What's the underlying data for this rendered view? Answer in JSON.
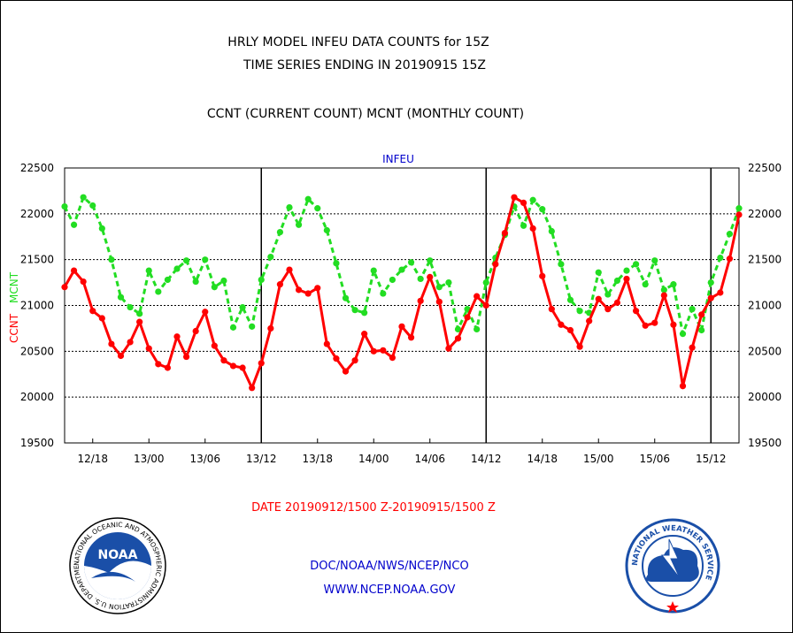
{
  "header": {
    "title_line1": "HRLY MODEL INFEU DATA COUNTS for 15Z",
    "title_line2": "TIME SERIES ENDING IN 20190915 15Z",
    "subtitle": "CCNT (CURRENT COUNT) MCNT (MONTHLY COUNT)"
  },
  "footer": {
    "date_range": "DATE 20190912/1500 Z-20190915/1500 Z",
    "org": "DOC/NOAA/NWS/NCEP/NCO",
    "url": "WWW.NCEP.NOAA.GOV"
  },
  "logos": {
    "noaa": {
      "center_text": "NOAA",
      "ring_text": "NATIONAL OCEANIC AND ATMOSPHERIC ADMINISTRATION  U.S. DEPARTMENT OF COMMERCE"
    },
    "nws": {
      "ring_text": "NATIONAL WEATHER SERVICE"
    }
  },
  "colors": {
    "ccnt": "#ff0000",
    "mcnt": "#22dd22",
    "panel_label": "#0000cc",
    "footer_link": "#0000cc",
    "date_text": "#ff0000"
  },
  "chart_data": {
    "type": "line",
    "title": "INFEU",
    "ylabel_left": "CCNT",
    "ylabel_right": "MCNT",
    "ylim": [
      19500,
      22500
    ],
    "yticks": [
      19500,
      20000,
      20500,
      21000,
      21500,
      22000,
      22500
    ],
    "ytick_labels": [
      "19500",
      "20000",
      "20500",
      "21000",
      "21500",
      "22000",
      "22500"
    ],
    "grid": true,
    "x_hours_start_offset": 0,
    "x_hours_end": 72,
    "x_tick_hours": [
      3,
      9,
      15,
      21,
      27,
      33,
      39,
      45,
      51,
      57,
      63,
      69
    ],
    "x_tick_labels": [
      "12/18",
      "13/00",
      "13/06",
      "13/12",
      "13/18",
      "14/00",
      "14/06",
      "14/12",
      "14/18",
      "15/00",
      "15/06",
      "15/12"
    ],
    "day_divider_hours": [
      21,
      45,
      69
    ],
    "series": [
      {
        "name": "CCNT",
        "values": [
          21200,
          21380,
          21260,
          20940,
          20860,
          20580,
          20450,
          20600,
          20820,
          20530,
          20360,
          20320,
          20660,
          20440,
          20720,
          20930,
          20560,
          20400,
          20340,
          20320,
          20100,
          20370,
          20750,
          21230,
          21390,
          21170,
          21130,
          21190,
          20580,
          20420,
          20280,
          20400,
          20690,
          20500,
          20510,
          20430,
          20770,
          20650,
          21050,
          21310,
          21040,
          20530,
          20640,
          20870,
          21100,
          21000,
          21450,
          21790,
          22180,
          22120,
          21840,
          21320,
          20960,
          20790,
          20730,
          20550,
          20830,
          21070,
          20960,
          21030,
          21290,
          20940,
          20780,
          20810,
          21110,
          20790,
          20120,
          20540,
          20900,
          21080,
          21140,
          21510,
          21990
        ]
      },
      {
        "name": "MCNT",
        "values": [
          22080,
          21880,
          22180,
          22090,
          21840,
          21500,
          21090,
          20980,
          20910,
          21380,
          21150,
          21280,
          21400,
          21490,
          21260,
          21500,
          21200,
          21270,
          20760,
          20980,
          20770,
          21280,
          21530,
          21800,
          22070,
          21880,
          22160,
          22060,
          21820,
          21460,
          21080,
          20950,
          20920,
          21380,
          21130,
          21280,
          21390,
          21470,
          21290,
          21490,
          21200,
          21250,
          20740,
          20960,
          20740,
          21250,
          21520,
          21770,
          22080,
          21870,
          22150,
          22050,
          21810,
          21450,
          21060,
          20940,
          20920,
          21360,
          21120,
          21270,
          21380,
          21450,
          21230,
          21490,
          21170,
          21230,
          20690,
          20960,
          20730,
          21250,
          21520,
          21780,
          22060
        ]
      }
    ]
  }
}
